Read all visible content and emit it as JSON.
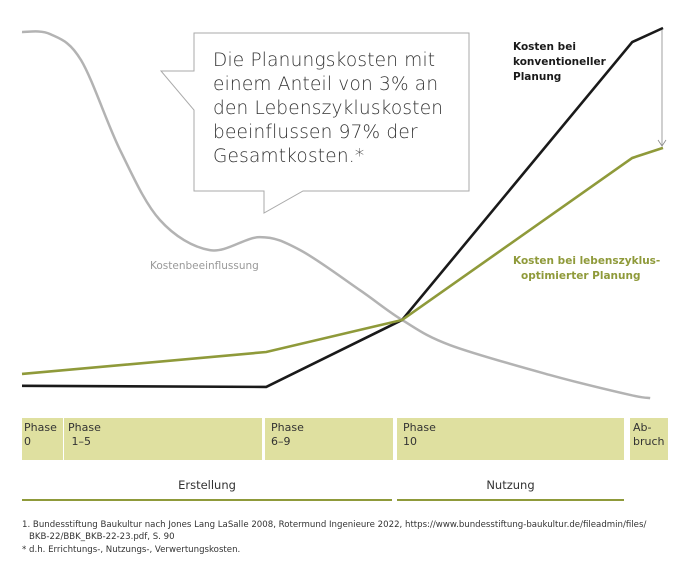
{
  "chart_data": {
    "type": "line",
    "title": "",
    "xlabel": "",
    "ylabel": "",
    "xlim": [
      0,
      100
    ],
    "ylim": [
      -5,
      100
    ],
    "grid": false,
    "series": [
      {
        "name": "Kostenbeeinflussung",
        "color": "#b3b3b3",
        "x": [
          0,
          4.4,
          9.2,
          15.3,
          21.5,
          29.3,
          37.1,
          43.4,
          52.7,
          59.3,
          66.8,
          82.4,
          94.8,
          98
        ],
        "y": [
          98.9,
          98.3,
          91.1,
          66.1,
          46.7,
          38.3,
          41.9,
          38.3,
          27.2,
          18.9,
          11.9,
          3.6,
          -1.9,
          -2.8
        ]
      },
      {
        "name": "Kosten bei konventioneller Planung",
        "color": "#1a1a1a",
        "x": [
          0,
          38.1,
          59.3,
          95.2,
          100
        ],
        "y": [
          0.6,
          0.3,
          18.9,
          96.1,
          100
        ]
      },
      {
        "name": "Kosten bei lebenszyklus-optimierter Planung",
        "color": "#8f9a3a",
        "x": [
          0,
          38.1,
          59.3,
          95.2,
          100
        ],
        "y": [
          3.9,
          10,
          18.9,
          63.9,
          66.7
        ]
      }
    ],
    "labels": {
      "grey": "Kostenbeeinflussung",
      "black": [
        "Kosten bei",
        "konventioneller",
        "Planung"
      ],
      "green": [
        "Kosten bei lebenszyklus-",
        "optimierter Planung"
      ]
    },
    "callout": [
      "Die Planungskosten mit",
      "einem Anteil von 3% an",
      "den Lebenszykluskosten",
      "beeinflussen 97% der",
      "Gesamtkosten.*"
    ]
  },
  "phases": [
    {
      "line1": "Phase",
      "line2": "0"
    },
    {
      "line1": "Phase",
      "line2": " 1–5"
    },
    {
      "line1": "Phase",
      "line2": "6–9"
    },
    {
      "line1": "Phase",
      "line2": "10"
    },
    {
      "line1": "Ab-",
      "line2": "bruch"
    }
  ],
  "eras": [
    "Erstellung",
    "Nutzung"
  ],
  "footnotes": [
    "1. Bundesstiftung Baukultur nach Jones Lang LaSalle 2008, Rotermund Ingenieure 2022, https://www.bundesstiftung-baukultur.de/fileadmin/files/",
    "BKB-22/BBK_BKB-22-23.pdf, S. 90",
    "* d.h. Errichtungs-, Nutzungs-, Verwertungskosten."
  ],
  "colors": {
    "accent": "#8f9a3a",
    "phase_fill": "#dfe0a0",
    "grey": "#b3b3b3",
    "black": "#1a1a1a"
  }
}
